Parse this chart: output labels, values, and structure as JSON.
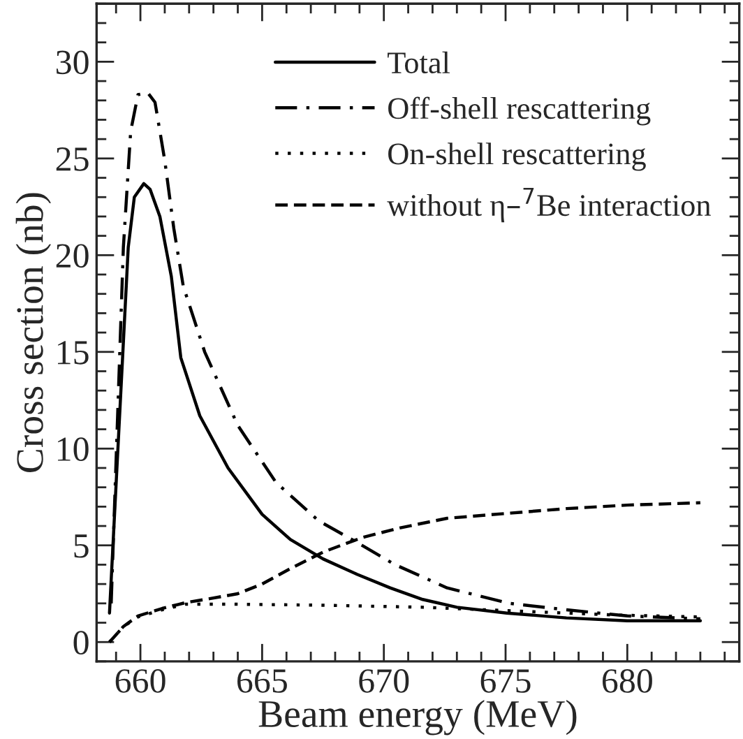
{
  "chart_data": {
    "type": "line",
    "xlabel": "Beam energy (MeV)",
    "ylabel": "Cross section (nb)",
    "xlim": [
      658.2,
      684.6
    ],
    "xticks": [
      660,
      665,
      670,
      675,
      680
    ],
    "ylim": [
      -1,
      33
    ],
    "yticks": [
      0,
      5,
      10,
      15,
      20,
      25,
      30
    ],
    "grid": false,
    "legend": "top right",
    "marker": "none",
    "series": [
      {
        "name": "Total",
        "color": "#000000",
        "line_style": "solid",
        "x": [
          658.73,
          659.5,
          659.75,
          660.14,
          660.4,
          660.8,
          661.27,
          661.66,
          662.44,
          663.6,
          665.0,
          666.16,
          667.5,
          668.9,
          670.26,
          671.6,
          673.0,
          675.05,
          677.5,
          680.0,
          683.0
        ],
        "values": [
          1.5,
          20.4,
          23.0,
          23.7,
          23.4,
          22.0,
          18.9,
          14.7,
          11.7,
          9.0,
          6.6,
          5.3,
          4.3,
          3.5,
          2.8,
          2.2,
          1.8,
          1.5,
          1.25,
          1.1,
          1.1
        ]
      },
      {
        "name": "Off-shell rescattering",
        "color": "#000000",
        "line_style": "dashdot",
        "x": [
          658.8,
          659.3,
          659.6,
          659.9,
          660.3,
          660.6,
          661.0,
          661.37,
          661.76,
          662.64,
          664.0,
          665.57,
          667.33,
          668.9,
          670.46,
          672.6,
          675.15,
          677.5,
          680.0,
          683.0
        ],
        "values": [
          2.0,
          20.4,
          26.4,
          28.3,
          28.4,
          27.9,
          24.9,
          21.4,
          18.4,
          15.0,
          11.2,
          8.25,
          6.26,
          5.15,
          4.0,
          2.8,
          2.0,
          1.67,
          1.35,
          1.2
        ]
      },
      {
        "name": "On-shell rescattering",
        "color": "#000000",
        "line_style": "dotted",
        "x": [
          658.73,
          659.3,
          659.9,
          660.9,
          661.86,
          663.8,
          667.7,
          671.6,
          675.5,
          679.45,
          683.0
        ],
        "values": [
          0,
          0.8,
          1.3,
          1.67,
          1.96,
          1.96,
          1.9,
          1.8,
          1.6,
          1.4,
          1.3
        ]
      },
      {
        "name": "without η–$^{7}$Be interaction",
        "color": "#000000",
        "line_style": "dashed",
        "x": [
          658.73,
          659.3,
          659.9,
          660.9,
          661.86,
          662.84,
          664.0,
          665.0,
          666.16,
          667.5,
          669.1,
          670.65,
          672.6,
          674.95,
          677.5,
          680.0,
          683.0
        ],
        "values": [
          0,
          0.8,
          1.35,
          1.74,
          2.04,
          2.24,
          2.5,
          3.0,
          3.8,
          4.65,
          5.4,
          5.9,
          6.4,
          6.64,
          6.9,
          7.08,
          7.2
        ]
      }
    ]
  }
}
